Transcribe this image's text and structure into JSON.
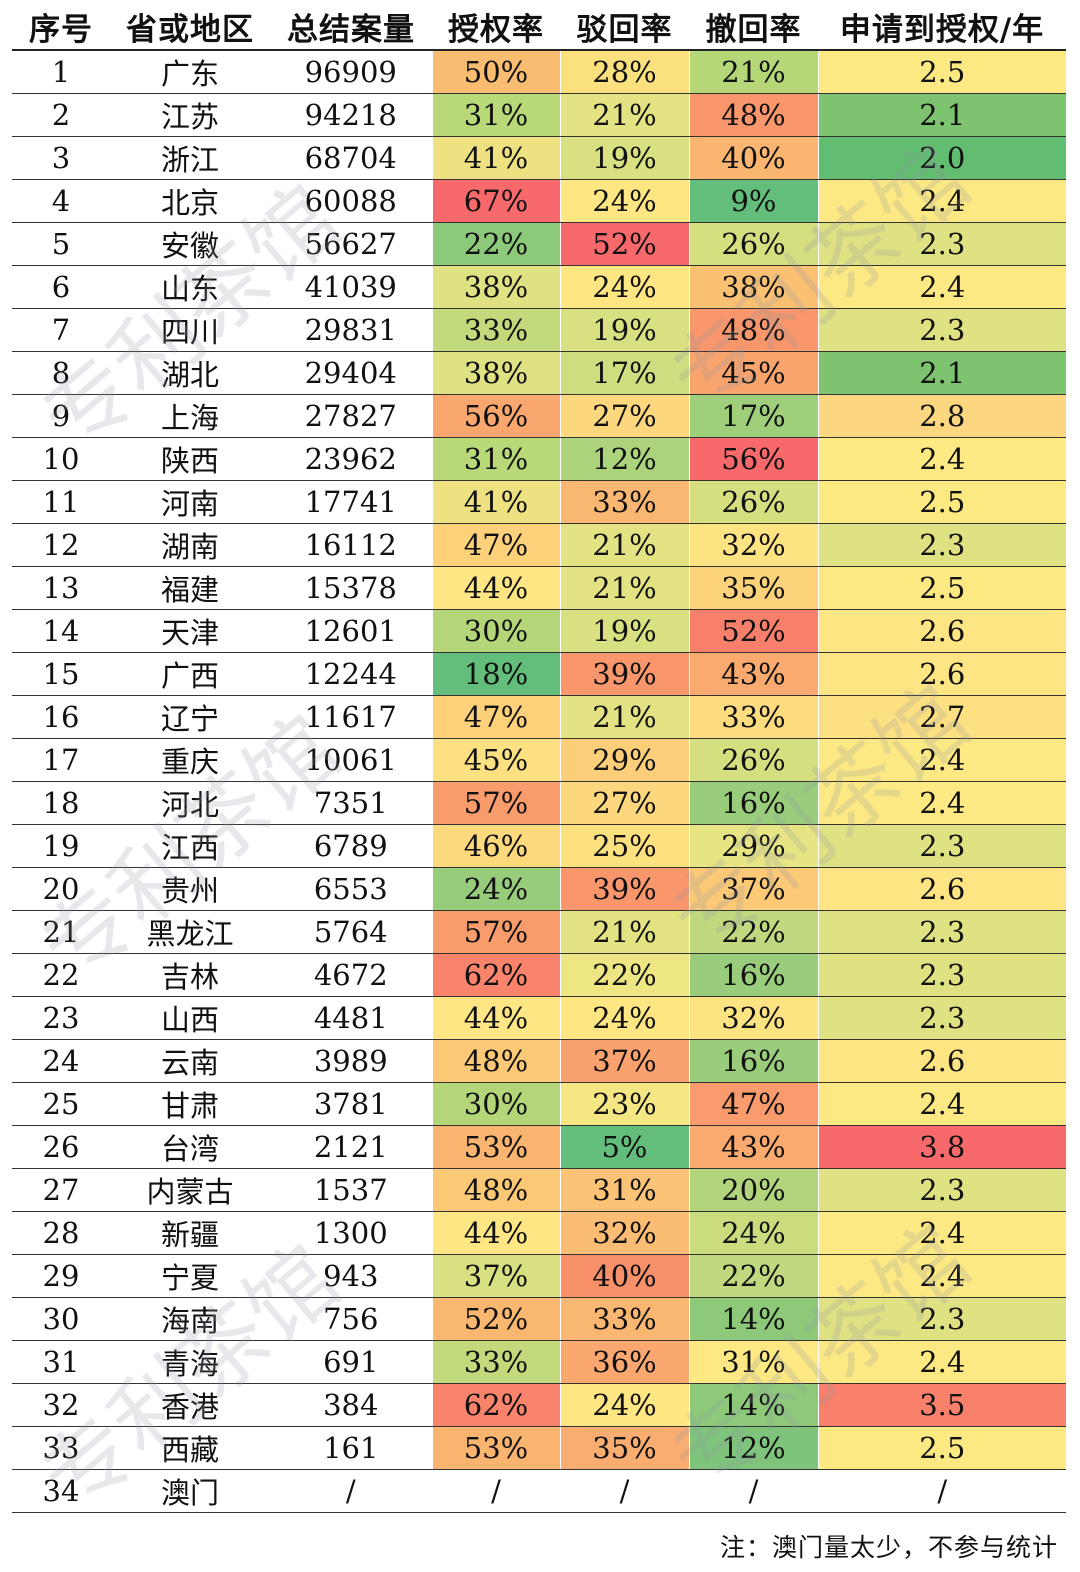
{
  "table": {
    "headers": [
      "序号",
      "省或地区",
      "总结案量",
      "授权率",
      "驳回率",
      "撤回率",
      "申请到授权/年"
    ],
    "rows": [
      {
        "no": "1",
        "region": "广东",
        "cases": "96909",
        "grant": "50%",
        "reject": "28%",
        "withdraw": "21%",
        "years": "2.5",
        "colors": {
          "grant": "#f9bd72",
          "reject": "#fbe07e",
          "withdraw": "#b5d778",
          "years": "#fde982"
        }
      },
      {
        "no": "2",
        "region": "江苏",
        "cases": "94218",
        "grant": "31%",
        "reject": "21%",
        "withdraw": "48%",
        "years": "2.1",
        "colors": {
          "grant": "#b9d878",
          "reject": "#e4e383",
          "withdraw": "#f9966b",
          "years": "#7ec470"
        }
      },
      {
        "no": "3",
        "region": "浙江",
        "cases": "68704",
        "grant": "41%",
        "reject": "19%",
        "withdraw": "40%",
        "years": "2.0",
        "colors": {
          "grant": "#eee182",
          "reject": "#d9e081",
          "withdraw": "#fab670",
          "years": "#63bd70"
        }
      },
      {
        "no": "4",
        "region": "北京",
        "cases": "60088",
        "grant": "67%",
        "reject": "24%",
        "withdraw": "9%",
        "years": "2.4",
        "colors": {
          "grant": "#f8696b",
          "reject": "#fee783",
          "withdraw": "#63be7b",
          "years": "#fde983"
        }
      },
      {
        "no": "5",
        "region": "安徽",
        "cases": "56627",
        "grant": "22%",
        "reject": "52%",
        "withdraw": "26%",
        "years": "2.3",
        "colors": {
          "grant": "#8dc97a",
          "reject": "#f8696b",
          "withdraw": "#d6df80",
          "years": "#dfe282"
        }
      },
      {
        "no": "6",
        "region": "山东",
        "cases": "41039",
        "grant": "38%",
        "reject": "24%",
        "withdraw": "38%",
        "years": "2.4",
        "colors": {
          "grant": "#dfe282",
          "reject": "#fee783",
          "withdraw": "#fbc173",
          "years": "#fde983"
        }
      },
      {
        "no": "7",
        "region": "四川",
        "cases": "29831",
        "grant": "33%",
        "reject": "19%",
        "withdraw": "48%",
        "years": "2.3",
        "colors": {
          "grant": "#c3da7c",
          "reject": "#d9e081",
          "withdraw": "#f9966b",
          "years": "#dfe282"
        }
      },
      {
        "no": "8",
        "region": "湖北",
        "cases": "29404",
        "grant": "38%",
        "reject": "17%",
        "withdraw": "45%",
        "years": "2.1",
        "colors": {
          "grant": "#dfe282",
          "reject": "#cddd80",
          "withdraw": "#faa46d",
          "years": "#7ec470"
        }
      },
      {
        "no": "9",
        "region": "上海",
        "cases": "27827",
        "grant": "56%",
        "reject": "27%",
        "withdraw": "17%",
        "years": "2.8",
        "colors": {
          "grant": "#f9a66f",
          "reject": "#fcd77d",
          "withdraw": "#a0cf7b",
          "years": "#fcd780"
        }
      },
      {
        "no": "10",
        "region": "陕西",
        "cases": "23962",
        "grant": "31%",
        "reject": "12%",
        "withdraw": "56%",
        "years": "2.4",
        "colors": {
          "grant": "#b9d878",
          "reject": "#acd47d",
          "withdraw": "#f8696b",
          "years": "#fde983"
        }
      },
      {
        "no": "11",
        "region": "河南",
        "cases": "17741",
        "grant": "41%",
        "reject": "33%",
        "withdraw": "26%",
        "years": "2.5",
        "colors": {
          "grant": "#eee182",
          "reject": "#fab772",
          "withdraw": "#d6df80",
          "years": "#fde982"
        }
      },
      {
        "no": "12",
        "region": "湖南",
        "cases": "16112",
        "grant": "47%",
        "reject": "21%",
        "withdraw": "32%",
        "years": "2.3",
        "colors": {
          "grant": "#fcd17a",
          "reject": "#e4e383",
          "withdraw": "#fde382",
          "years": "#dfe282"
        }
      },
      {
        "no": "13",
        "region": "福建",
        "cases": "15378",
        "grant": "44%",
        "reject": "21%",
        "withdraw": "35%",
        "years": "2.5",
        "colors": {
          "grant": "#fde683",
          "reject": "#e4e383",
          "withdraw": "#fcd27a",
          "years": "#fde982"
        }
      },
      {
        "no": "14",
        "region": "天津",
        "cases": "12601",
        "grant": "30%",
        "reject": "19%",
        "withdraw": "52%",
        "years": "2.6",
        "colors": {
          "grant": "#b4d679",
          "reject": "#d9e081",
          "withdraw": "#f8806a",
          "years": "#fde583"
        }
      },
      {
        "no": "15",
        "region": "广西",
        "cases": "12244",
        "grant": "18%",
        "reject": "39%",
        "withdraw": "43%",
        "years": "2.6",
        "colors": {
          "grant": "#63be7b",
          "reject": "#f9966b",
          "withdraw": "#faaa6e",
          "years": "#fde583"
        }
      },
      {
        "no": "16",
        "region": "辽宁",
        "cases": "11617",
        "grant": "47%",
        "reject": "21%",
        "withdraw": "33%",
        "years": "2.7",
        "colors": {
          "grant": "#fcd17a",
          "reject": "#e4e383",
          "withdraw": "#fddb7f",
          "years": "#fde081"
        }
      },
      {
        "no": "17",
        "region": "重庆",
        "cases": "10061",
        "grant": "45%",
        "reject": "29%",
        "withdraw": "26%",
        "years": "2.4",
        "colors": {
          "grant": "#fde082",
          "reject": "#fbcf79",
          "withdraw": "#d6df80",
          "years": "#fde983"
        }
      },
      {
        "no": "18",
        "region": "河北",
        "cases": "7351",
        "grant": "57%",
        "reject": "27%",
        "withdraw": "16%",
        "years": "2.4",
        "colors": {
          "grant": "#f99c6c",
          "reject": "#fcd77d",
          "withdraw": "#9acd7b",
          "years": "#fde983"
        }
      },
      {
        "no": "19",
        "region": "江西",
        "cases": "6789",
        "grant": "46%",
        "reject": "25%",
        "withdraw": "29%",
        "years": "2.3",
        "colors": {
          "grant": "#fcd97d",
          "reject": "#fee17f",
          "withdraw": "#e7e583",
          "years": "#dfe282"
        }
      },
      {
        "no": "20",
        "region": "贵州",
        "cases": "6553",
        "grant": "24%",
        "reject": "39%",
        "withdraw": "37%",
        "years": "2.6",
        "colors": {
          "grant": "#97cc7b",
          "reject": "#f9966b",
          "withdraw": "#fcc976",
          "years": "#fde583"
        }
      },
      {
        "no": "21",
        "region": "黑龙江",
        "cases": "5764",
        "grant": "57%",
        "reject": "21%",
        "withdraw": "22%",
        "years": "2.3",
        "colors": {
          "grant": "#f99c6c",
          "reject": "#e4e383",
          "withdraw": "#c0d97e",
          "years": "#dfe282"
        }
      },
      {
        "no": "22",
        "region": "吉林",
        "cases": "4672",
        "grant": "62%",
        "reject": "22%",
        "withdraw": "16%",
        "years": "2.3",
        "colors": {
          "grant": "#f9836b",
          "reject": "#eee583",
          "withdraw": "#9acd7b",
          "years": "#dfe282"
        }
      },
      {
        "no": "23",
        "region": "山西",
        "cases": "4481",
        "grant": "44%",
        "reject": "24%",
        "withdraw": "32%",
        "years": "2.3",
        "colors": {
          "grant": "#fde683",
          "reject": "#fee783",
          "withdraw": "#fde382",
          "years": "#dfe282"
        }
      },
      {
        "no": "24",
        "region": "云南",
        "cases": "3989",
        "grant": "48%",
        "reject": "37%",
        "withdraw": "16%",
        "years": "2.6",
        "colors": {
          "grant": "#fbc976",
          "reject": "#f9a26e",
          "withdraw": "#9acd7b",
          "years": "#fde583"
        }
      },
      {
        "no": "25",
        "region": "甘肃",
        "cases": "3781",
        "grant": "30%",
        "reject": "23%",
        "withdraw": "47%",
        "years": "2.4",
        "colors": {
          "grant": "#b4d679",
          "reject": "#f4e683",
          "withdraw": "#f99b6c",
          "years": "#fde983"
        }
      },
      {
        "no": "26",
        "region": "台湾",
        "cases": "2121",
        "grant": "53%",
        "reject": "5%",
        "withdraw": "43%",
        "years": "3.8",
        "colors": {
          "grant": "#f9b470",
          "reject": "#63be7b",
          "withdraw": "#faaa6e",
          "years": "#f8696b"
        }
      },
      {
        "no": "27",
        "region": "内蒙古",
        "cases": "1537",
        "grant": "48%",
        "reject": "31%",
        "withdraw": "20%",
        "years": "2.3",
        "colors": {
          "grant": "#fbc976",
          "reject": "#fbc376",
          "withdraw": "#b2d47c",
          "years": "#dfe282"
        }
      },
      {
        "no": "28",
        "region": "新疆",
        "cases": "1300",
        "grant": "44%",
        "reject": "32%",
        "withdraw": "24%",
        "years": "2.4",
        "colors": {
          "grant": "#fde683",
          "reject": "#fbbd74",
          "withdraw": "#cbdc7f",
          "years": "#fde983"
        }
      },
      {
        "no": "29",
        "region": "宁夏",
        "cases": "943",
        "grant": "37%",
        "reject": "40%",
        "withdraw": "22%",
        "years": "2.4",
        "colors": {
          "grant": "#d9e081",
          "reject": "#f8906a",
          "withdraw": "#c0d97e",
          "years": "#fde983"
        }
      },
      {
        "no": "30",
        "region": "海南",
        "cases": "756",
        "grant": "52%",
        "reject": "33%",
        "withdraw": "14%",
        "years": "2.3",
        "colors": {
          "grant": "#f9b770",
          "reject": "#fab772",
          "withdraw": "#8ec97a",
          "years": "#dfe282"
        }
      },
      {
        "no": "31",
        "region": "青海",
        "cases": "691",
        "grant": "33%",
        "reject": "36%",
        "withdraw": "31%",
        "years": "2.4",
        "colors": {
          "grant": "#c3da7c",
          "reject": "#faa870",
          "withdraw": "#fde883",
          "years": "#fde983"
        }
      },
      {
        "no": "32",
        "region": "香港",
        "cases": "384",
        "grant": "62%",
        "reject": "24%",
        "withdraw": "14%",
        "years": "3.5",
        "colors": {
          "grant": "#f9836b",
          "reject": "#fee783",
          "withdraw": "#8ec97a",
          "years": "#f9806b"
        }
      },
      {
        "no": "33",
        "region": "西藏",
        "cases": "161",
        "grant": "53%",
        "reject": "35%",
        "withdraw": "12%",
        "years": "2.5",
        "colors": {
          "grant": "#f9b470",
          "reject": "#faad71",
          "withdraw": "#7fc47b",
          "years": "#fde982"
        }
      },
      {
        "no": "34",
        "region": "澳门",
        "cases": "/",
        "grant": "/",
        "reject": "/",
        "withdraw": "/",
        "years": "/",
        "colors": {
          "grant": "#ffffff",
          "reject": "#ffffff",
          "withdraw": "#ffffff",
          "years": "#ffffff"
        }
      }
    ]
  },
  "note": "注：澳门量太少，不参与统计",
  "watermark": "专利茶馆"
}
